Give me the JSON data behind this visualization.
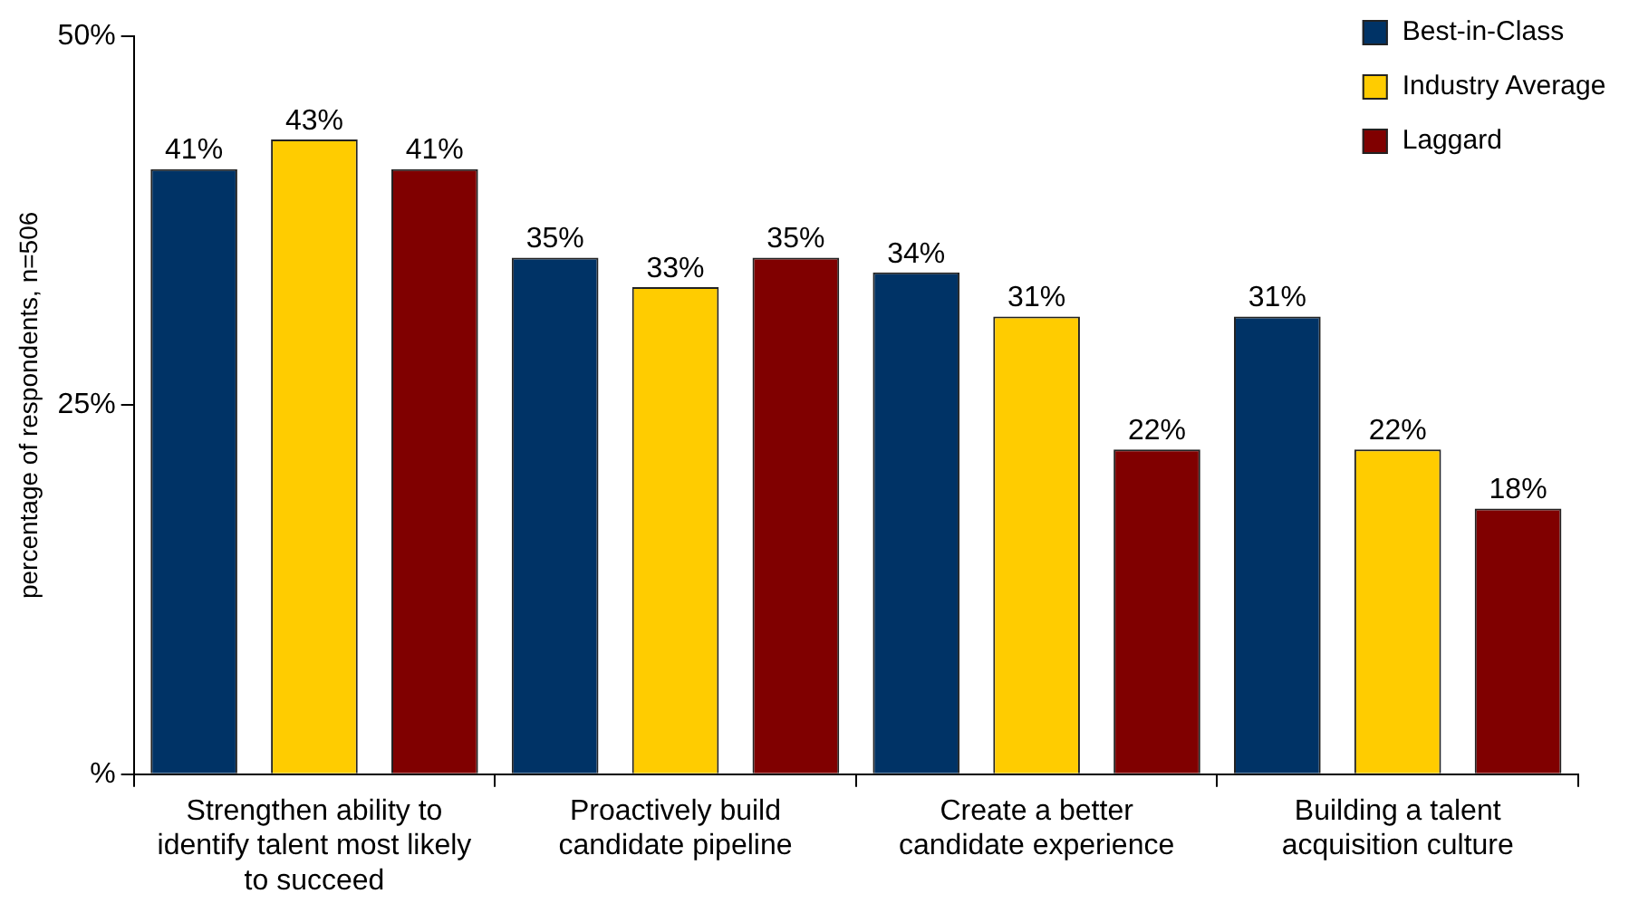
{
  "chart_data": {
    "type": "bar",
    "ylabel": "percentage of respondents, n=506",
    "categories": [
      "Strengthen ability to identify talent most likely to succeed",
      "Proactively build candidate pipeline",
      "Create a better candidate experience",
      "Building a talent acquisition culture"
    ],
    "series": [
      {
        "name": "Best-in-Class",
        "color": "#003366",
        "values": [
          41,
          35,
          34,
          31
        ],
        "value_labels": [
          "41%",
          "35%",
          "34%",
          "31%"
        ]
      },
      {
        "name": "Industry Average",
        "color": "#ffcc00",
        "values": [
          43,
          33,
          31,
          22
        ],
        "value_labels": [
          "43%",
          "33%",
          "31%",
          "22%"
        ]
      },
      {
        "name": "Laggard",
        "color": "#800000",
        "values": [
          41,
          35,
          22,
          18
        ],
        "value_labels": [
          "41%",
          "35%",
          "22%",
          "18%"
        ]
      }
    ],
    "ylim": [
      0,
      50
    ],
    "yticks": [
      {
        "value": 0,
        "label": "%"
      },
      {
        "value": 25,
        "label": "25%"
      },
      {
        "value": 50,
        "label": "50%"
      }
    ],
    "grid": false,
    "legend": "top right"
  }
}
